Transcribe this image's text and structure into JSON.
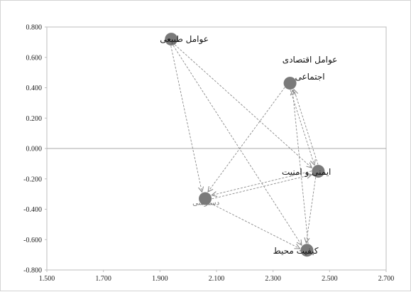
{
  "chart_data": {
    "type": "scatter",
    "title": "",
    "xlabel": "",
    "ylabel": "",
    "xlim": [
      1.5,
      2.7
    ],
    "ylim": [
      -0.8,
      0.8
    ],
    "x_ticks": [
      "1.500",
      "1.700",
      "1.900",
      "2.100",
      "2.300",
      "2.500",
      "2.700"
    ],
    "y_ticks": [
      "0.800",
      "0.600",
      "0.400",
      "0.200",
      "0.000",
      "-0.200",
      "-0.400",
      "-0.600",
      "-0.800"
    ],
    "grid": false,
    "zero_line": true,
    "point_color": "#7a7a7a",
    "arrow_color": "#8a8a8a",
    "points": [
      {
        "id": "natural",
        "label_lines": [
          "عوامل طبیعی"
        ],
        "x": 1.94,
        "y": 0.72
      },
      {
        "id": "socioeconomic",
        "label_lines": [
          "عوامل اقتصادی",
          "اجتماعی"
        ],
        "x": 2.36,
        "y": 0.43
      },
      {
        "id": "safety",
        "label_lines": [
          "ایمنی و امنیت"
        ],
        "x": 2.46,
        "y": -0.15
      },
      {
        "id": "access",
        "label_lines": [
          "دسترسی"
        ],
        "x": 2.06,
        "y": -0.33
      },
      {
        "id": "environment",
        "label_lines": [
          "کیفیت محیط"
        ],
        "x": 2.42,
        "y": -0.67
      }
    ],
    "edges": [
      {
        "from": "natural",
        "to": "access"
      },
      {
        "from": "natural",
        "to": "safety"
      },
      {
        "from": "natural",
        "to": "environment"
      },
      {
        "from": "socioeconomic",
        "to": "access"
      },
      {
        "from": "socioeconomic",
        "to": "safety"
      },
      {
        "from": "safety",
        "to": "socioeconomic"
      },
      {
        "from": "safety",
        "to": "access"
      },
      {
        "from": "access",
        "to": "safety"
      },
      {
        "from": "safety",
        "to": "environment"
      },
      {
        "from": "access",
        "to": "environment"
      },
      {
        "from": "environment",
        "to": "socioeconomic"
      }
    ]
  }
}
